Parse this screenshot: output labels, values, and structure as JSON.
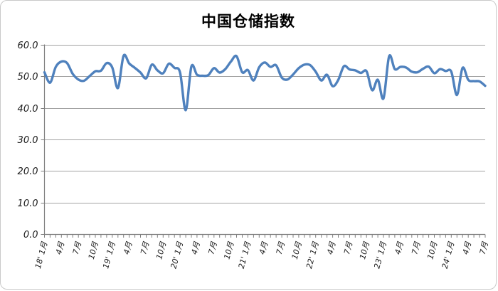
{
  "chart_data": {
    "type": "line",
    "title": "中国仓储指数",
    "frequency": "monthly",
    "start_period": "18' 1月",
    "end_period": "24' 7月",
    "values": [
      51.3,
      48.0,
      53.0,
      54.7,
      54.2,
      50.8,
      49.0,
      48.6,
      50.1,
      51.6,
      51.8,
      54.2,
      52.8,
      46.3,
      56.5,
      54.1,
      52.7,
      51.2,
      49.4,
      53.7,
      51.9,
      51.0,
      54.0,
      52.7,
      51.2,
      39.3,
      53.1,
      50.5,
      50.2,
      50.4,
      52.6,
      51.2,
      52.3,
      54.7,
      56.4,
      51.3,
      52.0,
      48.7,
      52.9,
      54.4,
      53.0,
      53.5,
      49.6,
      49.0,
      50.6,
      52.6,
      53.7,
      53.6,
      51.5,
      48.7,
      50.5,
      46.9,
      48.9,
      53.2,
      52.2,
      51.9,
      51.1,
      51.6,
      45.6,
      48.9,
      43.0,
      56.4,
      52.3,
      53.0,
      52.8,
      51.5,
      51.3,
      52.4,
      53.1,
      51.0,
      52.3,
      51.7,
      51.5,
      44.1,
      52.7,
      48.9,
      48.5,
      48.4,
      47.0
    ],
    "x_tick_labels": [
      "18' 1月",
      "4月",
      "7月",
      "10月",
      "19' 1月",
      "4月",
      "7月",
      "10月",
      "20' 1月",
      "4月",
      "7月",
      "10月",
      "21' 1月",
      "4月",
      "7月",
      "10月",
      "22' 1月",
      "4月",
      "7月",
      "10月",
      "23' 1月",
      "4月",
      "7月",
      "10月",
      "24' 1月",
      "4月",
      "7月"
    ],
    "x_label_interval_months": 3,
    "y_ticks": [
      0,
      10,
      20,
      30,
      40,
      50,
      60
    ],
    "y_tick_labels": [
      "0.0",
      "10.0",
      "20.0",
      "30.0",
      "40.0",
      "50.0",
      "60.0"
    ],
    "ylim": [
      0,
      60
    ],
    "grid": "horizontal",
    "legend": "none",
    "line_color": "#4f81bd",
    "gridline_color": "#a3a3a3",
    "axis_color": "#7f7f7f",
    "smoothed": true
  }
}
